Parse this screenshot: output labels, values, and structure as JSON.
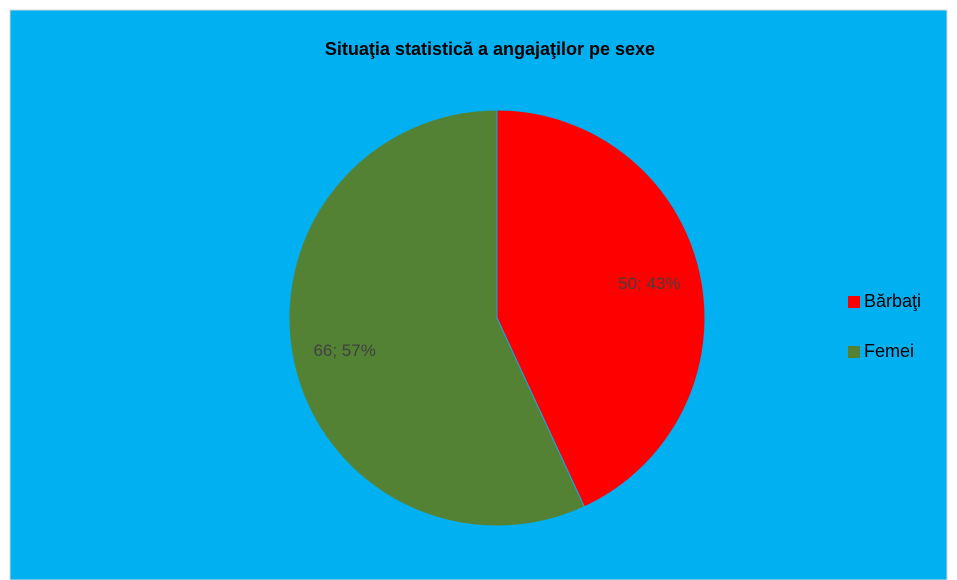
{
  "chart_data": {
    "type": "pie",
    "title": "Situaţia statistică a angajaţilor pe sexe",
    "categories": [
      "Bărbaţi",
      "Femei"
    ],
    "values": [
      50,
      66
    ],
    "value_labels": [
      "50; 43%",
      "66; 57%"
    ],
    "colors": [
      "#ff0000",
      "#548235"
    ],
    "legend": "right"
  }
}
